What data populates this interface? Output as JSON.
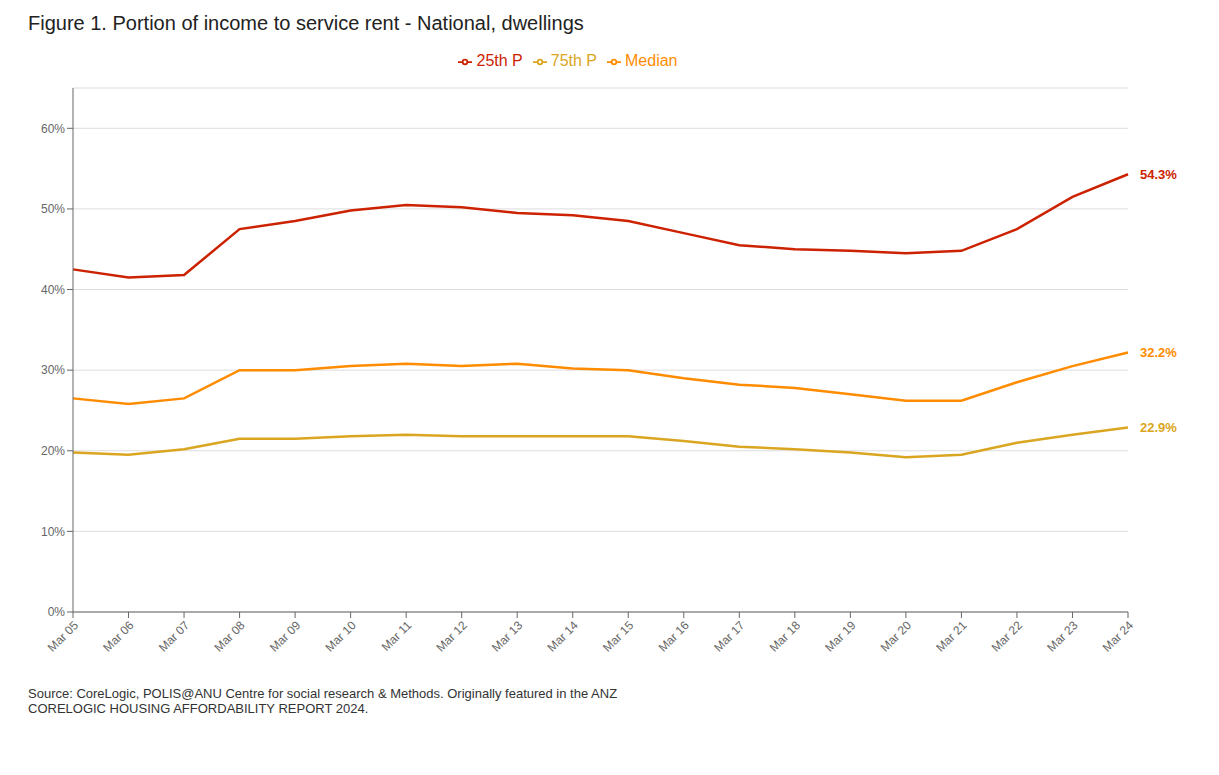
{
  "chart_data": {
    "type": "line",
    "title": "Figure 1. Portion of income to service rent - National, dwellings",
    "source": "Source: CoreLogic, POLIS@ANU Centre for social research & Methods. Originally featured in the ANZ\nCORELOGIC HOUSING AFFORDABILITY REPORT 2024.",
    "categories": [
      "Mar 05",
      "Mar 06",
      "Mar 07",
      "Mar 08",
      "Mar 09",
      "Mar 10",
      "Mar 11",
      "Mar 12",
      "Mar 13",
      "Mar 14",
      "Mar 15",
      "Mar 16",
      "Mar 17",
      "Mar 18",
      "Mar 19",
      "Mar 20",
      "Mar 21",
      "Mar 22",
      "Mar 23",
      "Mar 24"
    ],
    "series": [
      {
        "name": "25th P",
        "color": "#CC2200",
        "values": [
          42.5,
          41.5,
          41.8,
          47.5,
          48.5,
          49.8,
          50.5,
          50.2,
          49.5,
          49.2,
          48.5,
          47.0,
          45.5,
          45.0,
          44.8,
          44.5,
          44.8,
          47.5,
          51.5,
          54.3
        ]
      },
      {
        "name": "Median",
        "color": "#FF8C00",
        "values": [
          26.5,
          25.8,
          26.5,
          30.0,
          30.0,
          30.5,
          30.8,
          30.5,
          30.8,
          30.2,
          30.0,
          29.0,
          28.2,
          27.8,
          27.0,
          26.2,
          26.2,
          28.5,
          30.5,
          32.2
        ]
      },
      {
        "name": "75th P",
        "color": "#DAA520",
        "values": [
          19.8,
          19.5,
          20.2,
          21.5,
          21.5,
          21.8,
          22.0,
          21.8,
          21.8,
          21.8,
          21.8,
          21.2,
          20.5,
          20.2,
          19.8,
          19.2,
          19.5,
          21.0,
          22.0,
          22.9
        ]
      }
    ],
    "annotations": [
      {
        "text": "54.3%",
        "x": "Mar 24",
        "y": 54.3,
        "color": "#CC2200"
      },
      {
        "text": "32.2%",
        "x": "Mar 24",
        "y": 32.2,
        "color": "#FF8C00"
      },
      {
        "text": "22.9%",
        "x": "Mar 24",
        "y": 22.9,
        "color": "#DAA520"
      }
    ],
    "ylim": [
      0,
      65
    ],
    "yticks": [
      {
        "value": 0,
        "label": "0%"
      },
      {
        "value": 10,
        "label": "10%"
      },
      {
        "value": 20,
        "label": "20%"
      },
      {
        "value": 30,
        "label": "30%"
      },
      {
        "value": 40,
        "label": "40%"
      },
      {
        "value": 50,
        "label": "50%"
      },
      {
        "value": 60,
        "label": "60%"
      }
    ],
    "grid": true,
    "legend": "top"
  }
}
